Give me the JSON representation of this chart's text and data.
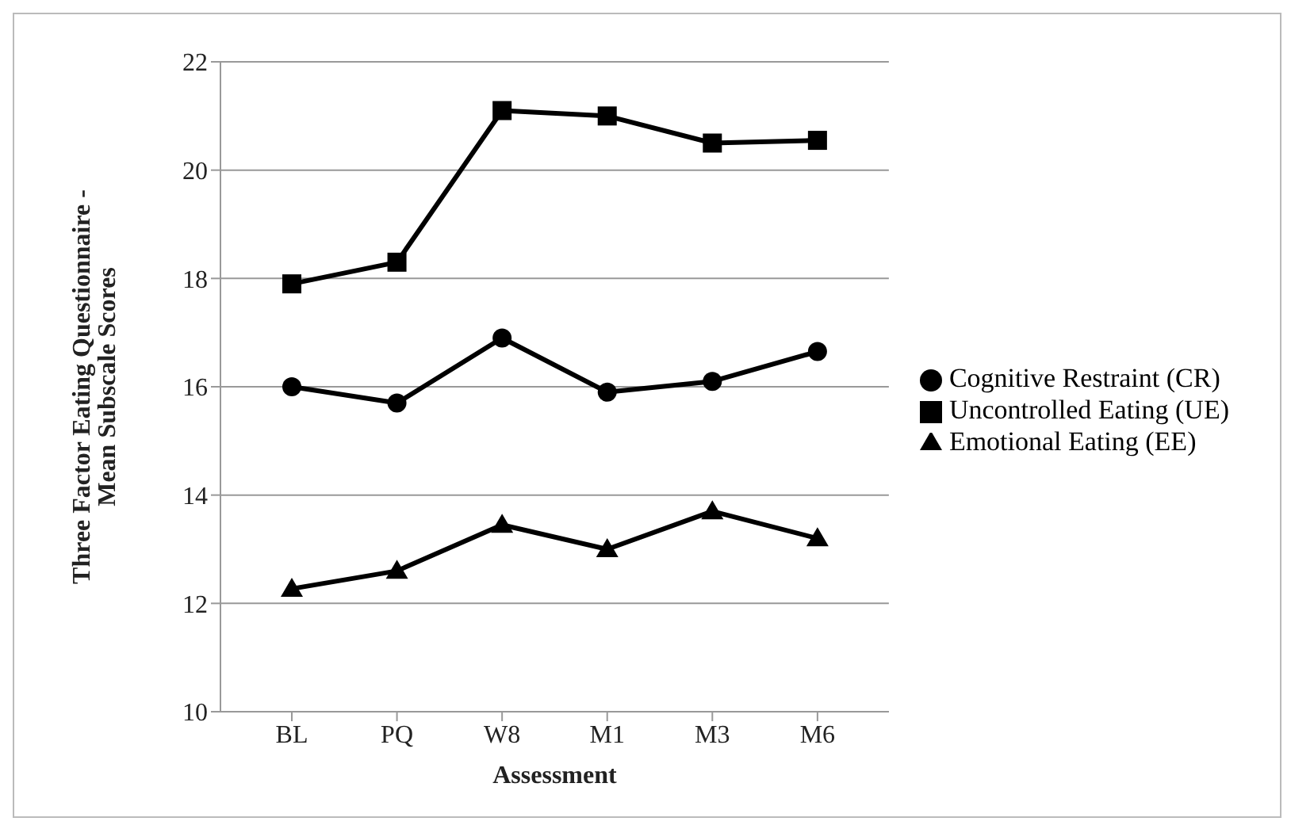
{
  "chart_data": {
    "type": "line",
    "xlabel": "Assessment",
    "ylabel": "Three Factor Eating Questionnaire - Mean Subscale Scores",
    "categories": [
      "BL",
      "PQ",
      "W8",
      "M1",
      "M3",
      "M6"
    ],
    "series": [
      {
        "name": "Cognitive Restraint (CR)",
        "color": "#000000",
        "marker": "circle",
        "values": [
          16.0,
          15.7,
          16.9,
          15.9,
          16.1,
          16.65
        ]
      },
      {
        "name": "Uncontrolled Eating (UE)",
        "color": "#000000",
        "marker": "square",
        "values": [
          17.9,
          18.3,
          21.1,
          21.0,
          20.5,
          20.55
        ]
      },
      {
        "name": "Emotional Eating (EE)",
        "color": "#000000",
        "marker": "triangle",
        "values": [
          12.27,
          12.6,
          13.45,
          13.0,
          13.7,
          13.2
        ]
      }
    ],
    "ylim": [
      10,
      22
    ],
    "yticks": [
      10,
      12,
      14,
      16,
      18,
      20,
      22
    ],
    "grid": "y",
    "legend": "right",
    "line_style": "solid"
  }
}
